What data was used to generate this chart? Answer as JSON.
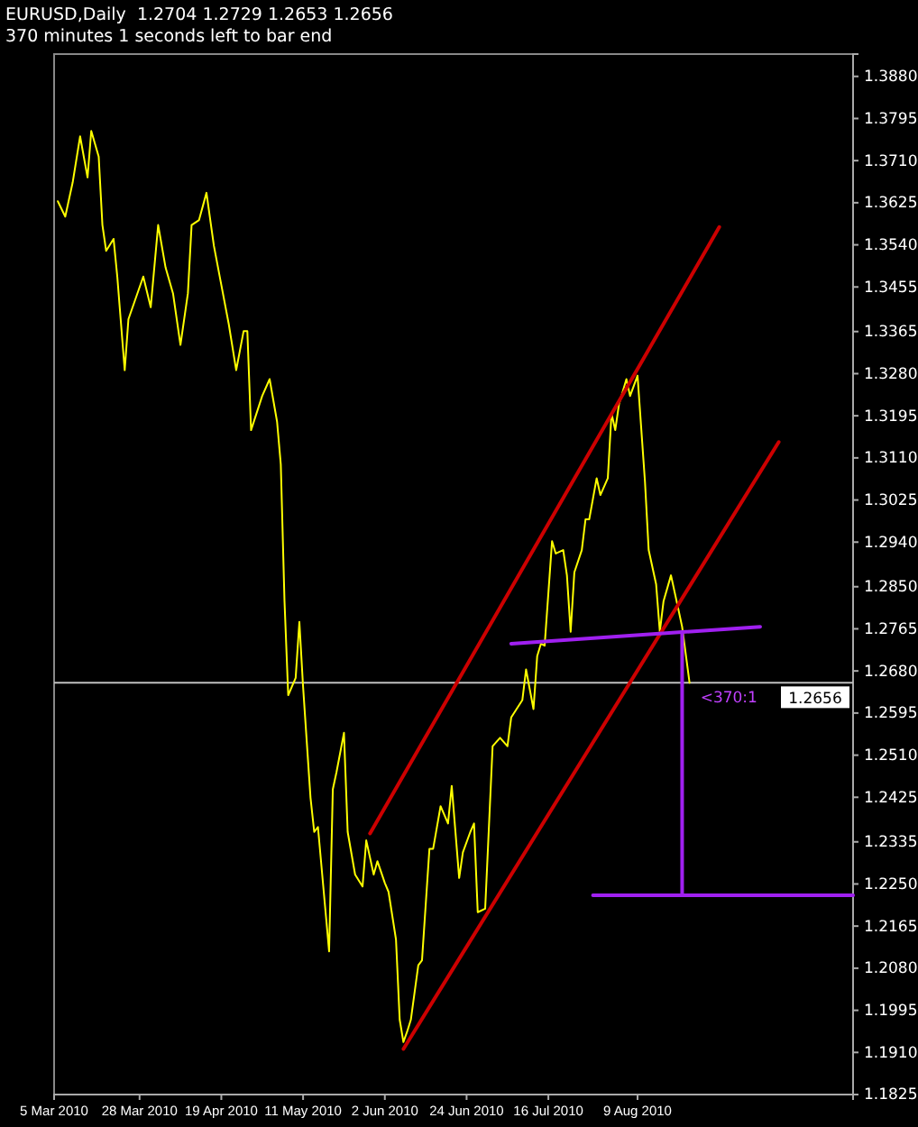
{
  "chart_data": {
    "type": "line",
    "title": "EURUSD,Daily  1.2704 1.2729 1.2653 1.2656",
    "subtitle": "370 minutes 1 seconds left to bar end",
    "xlim": [
      "2010-03-05",
      "2010-10-06"
    ],
    "xticks": [
      {
        "value": "2010-03-05",
        "label": "5 Mar 2010"
      },
      {
        "value": "2010-03-28",
        "label": "28 Mar 2010"
      },
      {
        "value": "2010-04-19",
        "label": "19 Apr 2010"
      },
      {
        "value": "2010-05-11",
        "label": "11 May 2010"
      },
      {
        "value": "2010-06-02",
        "label": "2 Jun 2010"
      },
      {
        "value": "2010-06-24",
        "label": "24 Jun 2010"
      },
      {
        "value": "2010-07-16",
        "label": "16 Jul 2010"
      },
      {
        "value": "2010-08-09",
        "label": "9 Aug 2010"
      }
    ],
    "ylim": [
      1.1825,
      1.3925
    ],
    "yticks": [
      {
        "value": 1.388,
        "label": "1.3880"
      },
      1.3795,
      {
        "value": 1.371,
        "label": "1.3710"
      },
      1.3625,
      {
        "value": 1.354,
        "label": "1.3540"
      },
      1.3455,
      1.3365,
      {
        "value": 1.328,
        "label": "1.3280"
      },
      1.3195,
      {
        "value": 1.311,
        "label": "1.3110"
      },
      1.3025,
      {
        "value": 1.294,
        "label": "1.2940"
      },
      {
        "value": 1.285,
        "label": "1.2850"
      },
      1.2765,
      {
        "value": 1.268,
        "label": "1.2680"
      },
      1.2595,
      {
        "value": 1.251,
        "label": "1.2510"
      },
      1.2425,
      1.2335,
      {
        "value": 1.225,
        "label": "1.2250"
      },
      1.2165,
      {
        "value": 1.208,
        "label": "1.2080"
      },
      1.1995,
      {
        "value": 1.191,
        "label": "1.1910"
      },
      1.1825
    ],
    "grid": false,
    "marker": "none",
    "line_style": "solid",
    "ref_lines": [
      {
        "axis": "y",
        "value": 1.2656,
        "label": "1.2656",
        "color": "#c0c0c0"
      }
    ],
    "annotations": [
      {
        "text": "<370:1",
        "x": "2010-08-23",
        "y": 1.2656
      }
    ],
    "series": [
      {
        "color": "#ffff00",
        "x": [
          "2010-03-06",
          "2010-03-08",
          "2010-03-10",
          "2010-03-12",
          "2010-03-14",
          "2010-03-15",
          "2010-03-17",
          "2010-03-18",
          "2010-03-19",
          "2010-03-21",
          "2010-03-22",
          "2010-03-24",
          "2010-03-25",
          "2010-03-29",
          "2010-03-31",
          "2010-04-02",
          "2010-04-04",
          "2010-04-06",
          "2010-04-08",
          "2010-04-10",
          "2010-04-11",
          "2010-04-13",
          "2010-04-15",
          "2010-04-17",
          "2010-04-19",
          "2010-04-21",
          "2010-04-23",
          "2010-04-25",
          "2010-04-26",
          "2010-04-27",
          "2010-04-30",
          "2010-05-02",
          "2010-05-04",
          "2010-05-05",
          "2010-05-06",
          "2010-05-07",
          "2010-05-09",
          "2010-05-10",
          "2010-05-11",
          "2010-05-13",
          "2010-05-14",
          "2010-05-15",
          "2010-05-18",
          "2010-05-19",
          "2010-05-20",
          "2010-05-22",
          "2010-05-23",
          "2010-05-25",
          "2010-05-27",
          "2010-05-28",
          "2010-05-30",
          "2010-05-31",
          "2010-06-02",
          "2010-06-03",
          "2010-06-05",
          "2010-06-06",
          "2010-06-07",
          "2010-06-08",
          "2010-06-09",
          "2010-06-11",
          "2010-06-12",
          "2010-06-14",
          "2010-06-15",
          "2010-06-17",
          "2010-06-19",
          "2010-06-20",
          "2010-06-22",
          "2010-06-23",
          "2010-06-25",
          "2010-06-26",
          "2010-06-27",
          "2010-06-29",
          "2010-07-01",
          "2010-07-03",
          "2010-07-05",
          "2010-07-06",
          "2010-07-09",
          "2010-07-10",
          "2010-07-12",
          "2010-07-13",
          "2010-07-14",
          "2010-07-15",
          "2010-07-17",
          "2010-07-18",
          "2010-07-20",
          "2010-07-21",
          "2010-07-22",
          "2010-07-23",
          "2010-07-25",
          "2010-07-26",
          "2010-07-27",
          "2010-07-29",
          "2010-07-30",
          "2010-08-01",
          "2010-08-02",
          "2010-08-03",
          "2010-08-04",
          "2010-08-06",
          "2010-08-07",
          "2010-08-09",
          "2010-08-11",
          "2010-08-12",
          "2010-08-14",
          "2010-08-15",
          "2010-08-16",
          "2010-08-18",
          "2010-08-20",
          "2010-08-21",
          "2010-08-23"
        ],
        "values": [
          1.3628,
          1.3597,
          1.3666,
          1.3759,
          1.3676,
          1.377,
          1.3718,
          1.358,
          1.3528,
          1.3552,
          1.3476,
          1.3287,
          1.339,
          1.3476,
          1.3414,
          1.358,
          1.3494,
          1.3442,
          1.3338,
          1.3442,
          1.358,
          1.359,
          1.3645,
          1.3538,
          1.3459,
          1.338,
          1.3287,
          1.3366,
          1.3366,
          1.3166,
          1.3235,
          1.3269,
          1.3183,
          1.3097,
          1.2821,
          1.2631,
          1.2666,
          1.2779,
          1.2648,
          1.2424,
          1.2355,
          1.2365,
          1.2114,
          1.2441,
          1.2476,
          1.2555,
          1.2355,
          1.2269,
          1.2245,
          1.2338,
          1.2269,
          1.2296,
          1.2252,
          1.2234,
          1.2138,
          1.1976,
          1.1931,
          1.1952,
          1.1976,
          1.2086,
          1.2096,
          1.2321,
          1.2321,
          1.2407,
          1.2372,
          1.2448,
          1.2262,
          1.2314,
          1.2355,
          1.2372,
          1.2193,
          1.22,
          1.2528,
          1.2545,
          1.2528,
          1.2586,
          1.2621,
          1.2683,
          1.2603,
          1.271,
          1.2735,
          1.2731,
          1.2942,
          1.2917,
          1.2924,
          1.2873,
          1.2759,
          1.2879,
          1.2924,
          1.2986,
          1.2986,
          1.3069,
          1.3035,
          1.3069,
          1.32,
          1.3166,
          1.3218,
          1.3269,
          1.3235,
          1.3276,
          1.3062,
          1.2924,
          1.2855,
          1.2759,
          1.2821,
          1.2873,
          1.2804,
          1.2769,
          1.2656
        ]
      },
      {
        "color": "#cc0000",
        "x": [
          "2010-05-29",
          "2010-08-31"
        ],
        "values": [
          1.2352,
          1.3576
        ]
      },
      {
        "color": "#cc0000",
        "x": [
          "2010-06-07",
          "2010-09-16"
        ],
        "values": [
          1.1917,
          1.3142
        ]
      },
      {
        "color": "#a020f0",
        "x": [
          "2010-07-06",
          "2010-09-11"
        ],
        "values": [
          1.2735,
          1.2769
        ]
      },
      {
        "color": "#a020f0",
        "x": [
          "2010-08-21",
          "2010-08-21"
        ],
        "values": [
          1.2759,
          1.2227
        ]
      },
      {
        "color": "#a020f0",
        "x": [
          "2010-07-28",
          "2010-10-06"
        ],
        "values": [
          1.2227,
          1.2227
        ]
      }
    ]
  }
}
